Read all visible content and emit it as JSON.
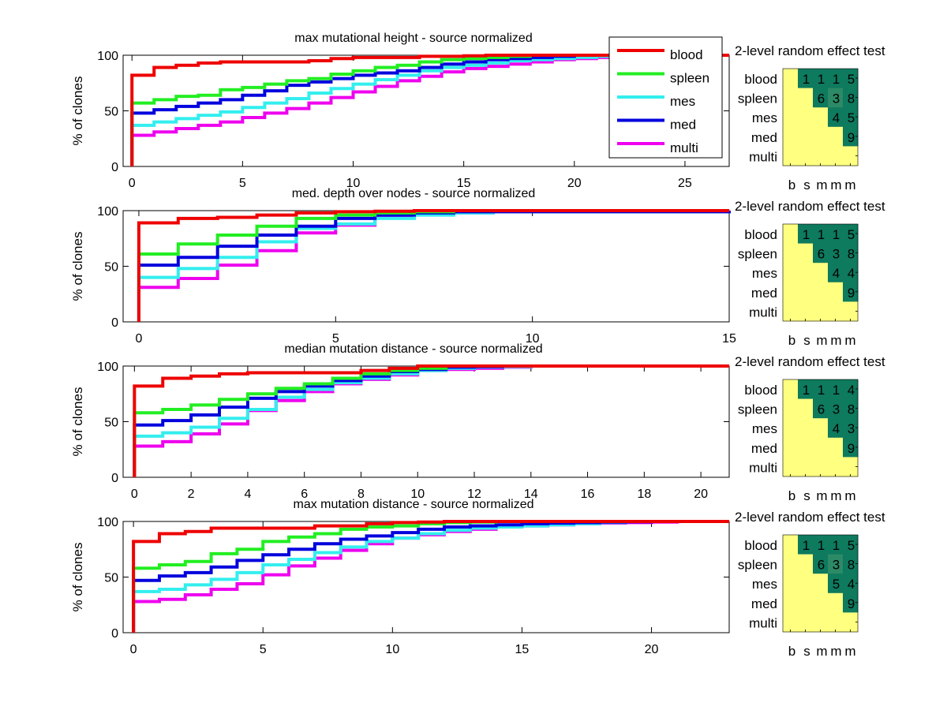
{
  "figure": {
    "series_names": [
      "blood",
      "spleen",
      "mes",
      "med",
      "multi"
    ],
    "series_colors": {
      "blood": "#ee0000",
      "spleen": "#22ee22",
      "mes": "#33eeee",
      "med": "#0000dd",
      "multi": "#ee00ee"
    },
    "heatmap_colors": {
      "low": "#ffff80",
      "high": "#0e7a5e",
      "mid": "#2c8a66"
    },
    "legend": {
      "location": "top-right of first panel",
      "entries": [
        "blood",
        "spleen",
        "mes",
        "med",
        "multi"
      ]
    }
  },
  "chart_data": [
    {
      "type": "line",
      "step": true,
      "title": "max mutational height - source normalized",
      "xlabel": "",
      "ylabel": "% of clones",
      "xlim": [
        -0.4,
        27
      ],
      "ylim": [
        0,
        100
      ],
      "xticks": [
        0,
        5,
        10,
        15,
        20,
        25
      ],
      "yticks": [
        0,
        50,
        100
      ],
      "series": [
        {
          "name": "blood",
          "x": [
            0,
            1,
            2,
            3,
            4,
            5,
            6,
            7,
            8,
            9,
            10,
            11,
            12,
            13,
            14,
            15,
            16,
            27
          ],
          "values": [
            82,
            89,
            91,
            93,
            94,
            94,
            94,
            94,
            95,
            97,
            98,
            98,
            98,
            99,
            99,
            99.5,
            100,
            100
          ]
        },
        {
          "name": "spleen",
          "x": [
            0,
            1,
            2,
            3,
            4,
            5,
            6,
            7,
            8,
            9,
            10,
            11,
            12,
            13,
            14,
            15,
            16,
            17,
            18,
            27
          ],
          "values": [
            57,
            60,
            63,
            64,
            69,
            71,
            74,
            77,
            79,
            83,
            86,
            89,
            91,
            94,
            96,
            97,
            98,
            99,
            100,
            100
          ]
        },
        {
          "name": "mes",
          "x": [
            0,
            1,
            2,
            3,
            4,
            5,
            6,
            7,
            8,
            9,
            10,
            11,
            12,
            13,
            14,
            15,
            16,
            17,
            18,
            19,
            20,
            21,
            22,
            27
          ],
          "values": [
            37,
            40,
            43,
            46,
            49,
            53,
            57,
            61,
            66,
            70,
            74,
            78,
            82,
            86,
            89,
            91,
            93,
            95,
            96,
            97,
            98,
            99,
            100,
            100
          ]
        },
        {
          "name": "med",
          "x": [
            0,
            1,
            2,
            3,
            4,
            5,
            6,
            7,
            8,
            9,
            10,
            11,
            12,
            13,
            14,
            15,
            16,
            17,
            18,
            19,
            20,
            27
          ],
          "values": [
            48,
            51,
            54,
            57,
            60,
            64,
            68,
            73,
            76,
            79,
            82,
            84,
            86,
            89,
            92,
            94,
            96,
            97,
            98,
            99,
            100,
            100
          ]
        },
        {
          "name": "multi",
          "x": [
            0,
            1,
            2,
            3,
            4,
            5,
            6,
            7,
            8,
            9,
            10,
            11,
            12,
            13,
            14,
            15,
            16,
            17,
            18,
            19,
            20,
            21,
            22,
            23,
            27
          ],
          "values": [
            28,
            31,
            34,
            37,
            40,
            44,
            48,
            52,
            57,
            62,
            67,
            72,
            77,
            81,
            85,
            88,
            90,
            92,
            94,
            96,
            97,
            98,
            99,
            100,
            100
          ]
        }
      ],
      "heatmap": {
        "title": "2-level random effect test",
        "row_labels": [
          "blood",
          "spleen",
          "mes",
          "med",
          "multi"
        ],
        "col_labels": [
          "b",
          "s",
          "m",
          "m",
          "m"
        ],
        "cells": [
          [
            null,
            1,
            1,
            1,
            5
          ],
          [
            null,
            null,
            6,
            3,
            8
          ],
          [
            null,
            null,
            null,
            4,
            5
          ],
          [
            null,
            null,
            null,
            null,
            9
          ],
          [
            null,
            null,
            null,
            null,
            null
          ]
        ],
        "highlight": [
          [
            1,
            3
          ]
        ]
      }
    },
    {
      "type": "line",
      "step": true,
      "title": "med. depth over nodes - source normalized",
      "xlabel": "",
      "ylabel": "% of clones",
      "xlim": [
        -0.4,
        15
      ],
      "ylim": [
        0,
        100
      ],
      "xticks": [
        0,
        5,
        10,
        15
      ],
      "yticks": [
        0,
        50,
        100
      ],
      "series": [
        {
          "name": "blood",
          "x": [
            0,
            1,
            2,
            3,
            4,
            5,
            6,
            7,
            8,
            15
          ],
          "values": [
            89,
            93,
            94,
            96,
            98,
            99,
            99.5,
            100,
            100,
            100
          ]
        },
        {
          "name": "spleen",
          "x": [
            0,
            1,
            2,
            3,
            4,
            5,
            6,
            7,
            8,
            15
          ],
          "values": [
            61,
            70,
            78,
            86,
            93,
            96,
            98,
            99,
            100,
            100
          ]
        },
        {
          "name": "mes",
          "x": [
            0,
            1,
            2,
            3,
            4,
            5,
            6,
            7,
            8,
            9,
            15
          ],
          "values": [
            40,
            48,
            58,
            72,
            84,
            88,
            93,
            96,
            98,
            99,
            100
          ]
        },
        {
          "name": "med",
          "x": [
            0,
            1,
            2,
            3,
            4,
            5,
            6,
            7,
            8,
            15
          ],
          "values": [
            51,
            58,
            68,
            78,
            86,
            93,
            96,
            98,
            99,
            100
          ]
        },
        {
          "name": "multi",
          "x": [
            0,
            1,
            2,
            3,
            4,
            5,
            6,
            7,
            8,
            9,
            10,
            11,
            12,
            15
          ],
          "values": [
            31,
            39,
            51,
            64,
            80,
            87,
            94,
            97,
            98,
            99,
            99.5,
            99.5,
            100,
            100
          ]
        }
      ],
      "heatmap": {
        "title": "2-level random effect test",
        "row_labels": [
          "blood",
          "spleen",
          "mes",
          "med",
          "multi"
        ],
        "col_labels": [
          "b",
          "s",
          "m",
          "m",
          "m"
        ],
        "cells": [
          [
            null,
            1,
            1,
            1,
            5
          ],
          [
            null,
            null,
            6,
            3,
            8
          ],
          [
            null,
            null,
            null,
            4,
            4
          ],
          [
            null,
            null,
            null,
            null,
            9
          ],
          [
            null,
            null,
            null,
            null,
            null
          ]
        ],
        "highlight": []
      }
    },
    {
      "type": "line",
      "step": true,
      "title": "median mutation distance - source normalized",
      "xlabel": "",
      "ylabel": "% of clones",
      "xlim": [
        -0.4,
        21
      ],
      "ylim": [
        0,
        100
      ],
      "xticks": [
        0,
        2,
        4,
        6,
        8,
        10,
        12,
        14,
        16,
        18,
        20
      ],
      "yticks": [
        0,
        50,
        100
      ],
      "series": [
        {
          "name": "blood",
          "x": [
            0,
            1,
            2,
            3,
            4,
            5,
            6,
            7,
            8,
            9,
            10,
            21
          ],
          "values": [
            82,
            89,
            91,
            93,
            94,
            94,
            94,
            94,
            96,
            98,
            100,
            100
          ]
        },
        {
          "name": "spleen",
          "x": [
            0,
            1,
            2,
            3,
            4,
            5,
            6,
            7,
            8,
            9,
            10,
            11,
            21
          ],
          "values": [
            58,
            61,
            65,
            70,
            75,
            80,
            84,
            89,
            93,
            96,
            98,
            100,
            100
          ]
        },
        {
          "name": "mes",
          "x": [
            0,
            1,
            2,
            3,
            4,
            5,
            6,
            7,
            8,
            9,
            10,
            11,
            12,
            13,
            14,
            21
          ],
          "values": [
            37,
            40,
            45,
            53,
            61,
            72,
            79,
            85,
            89,
            93,
            96,
            98,
            99,
            99.5,
            100,
            100
          ]
        },
        {
          "name": "med",
          "x": [
            0,
            1,
            2,
            3,
            4,
            5,
            6,
            7,
            8,
            9,
            10,
            11,
            12,
            13,
            21
          ],
          "values": [
            47,
            51,
            56,
            63,
            71,
            77,
            82,
            87,
            91,
            95,
            97,
            99,
            99.5,
            100,
            100
          ]
        },
        {
          "name": "multi",
          "x": [
            0,
            1,
            2,
            3,
            4,
            5,
            6,
            7,
            8,
            9,
            10,
            11,
            12,
            13,
            14,
            21
          ],
          "values": [
            28,
            32,
            39,
            48,
            60,
            69,
            77,
            84,
            88,
            92,
            96,
            97,
            98,
            99,
            100,
            100
          ]
        }
      ],
      "heatmap": {
        "title": "2-level random effect test",
        "row_labels": [
          "blood",
          "spleen",
          "mes",
          "med",
          "multi"
        ],
        "col_labels": [
          "b",
          "s",
          "m",
          "m",
          "m"
        ],
        "cells": [
          [
            null,
            1,
            1,
            1,
            4
          ],
          [
            null,
            null,
            6,
            3,
            8
          ],
          [
            null,
            null,
            null,
            4,
            3
          ],
          [
            null,
            null,
            null,
            null,
            9
          ],
          [
            null,
            null,
            null,
            null,
            null
          ]
        ],
        "highlight": []
      }
    },
    {
      "type": "line",
      "step": true,
      "title": "max mutation distance - source normalized",
      "xlabel": "",
      "ylabel": "% of clones",
      "xlim": [
        -0.4,
        23
      ],
      "ylim": [
        0,
        100
      ],
      "xticks": [
        0,
        5,
        10,
        15,
        20
      ],
      "yticks": [
        0,
        50,
        100
      ],
      "series": [
        {
          "name": "blood",
          "x": [
            0,
            1,
            2,
            3,
            4,
            5,
            6,
            7,
            8,
            9,
            10,
            11,
            12,
            23
          ],
          "values": [
            82,
            89,
            91,
            94,
            94,
            94,
            94,
            96,
            96,
            98,
            99,
            99.5,
            100,
            100
          ]
        },
        {
          "name": "spleen",
          "x": [
            0,
            1,
            2,
            3,
            4,
            5,
            6,
            7,
            8,
            9,
            10,
            11,
            12,
            13,
            14,
            23
          ],
          "values": [
            58,
            61,
            64,
            71,
            75,
            82,
            86,
            89,
            93,
            95,
            96,
            98,
            99,
            99.5,
            100,
            100
          ]
        },
        {
          "name": "mes",
          "x": [
            0,
            1,
            2,
            3,
            4,
            5,
            6,
            7,
            8,
            9,
            10,
            11,
            12,
            13,
            14,
            15,
            16,
            17,
            18,
            19,
            23
          ],
          "values": [
            37,
            39,
            43,
            48,
            54,
            61,
            66,
            72,
            77,
            82,
            85,
            89,
            92,
            94,
            95,
            96,
            97,
            98,
            99,
            100,
            100
          ]
        },
        {
          "name": "med",
          "x": [
            0,
            1,
            2,
            3,
            4,
            5,
            6,
            7,
            8,
            9,
            10,
            11,
            12,
            13,
            14,
            15,
            16,
            17,
            18,
            19,
            20,
            23
          ],
          "values": [
            47,
            51,
            54,
            59,
            65,
            70,
            75,
            80,
            84,
            87,
            90,
            93,
            95,
            96,
            97,
            98,
            98.5,
            99,
            99.5,
            99.7,
            100,
            100
          ]
        },
        {
          "name": "multi",
          "x": [
            0,
            1,
            2,
            3,
            4,
            5,
            6,
            7,
            8,
            9,
            10,
            11,
            12,
            13,
            14,
            15,
            16,
            17,
            18,
            19,
            20,
            21,
            23
          ],
          "values": [
            28,
            30,
            34,
            39,
            44,
            52,
            60,
            67,
            74,
            80,
            85,
            88,
            91,
            93,
            95,
            96,
            97,
            98,
            98.5,
            99,
            99.5,
            100,
            100
          ]
        }
      ],
      "heatmap": {
        "title": "2-level random effect test",
        "row_labels": [
          "blood",
          "spleen",
          "mes",
          "med",
          "multi"
        ],
        "col_labels": [
          "b",
          "s",
          "m",
          "m",
          "m"
        ],
        "cells": [
          [
            null,
            1,
            1,
            1,
            5
          ],
          [
            null,
            null,
            6,
            3,
            8
          ],
          [
            null,
            null,
            null,
            5,
            4
          ],
          [
            null,
            null,
            null,
            null,
            9
          ],
          [
            null,
            null,
            null,
            null,
            null
          ]
        ],
        "highlight": [
          [
            1,
            3
          ]
        ]
      }
    }
  ]
}
